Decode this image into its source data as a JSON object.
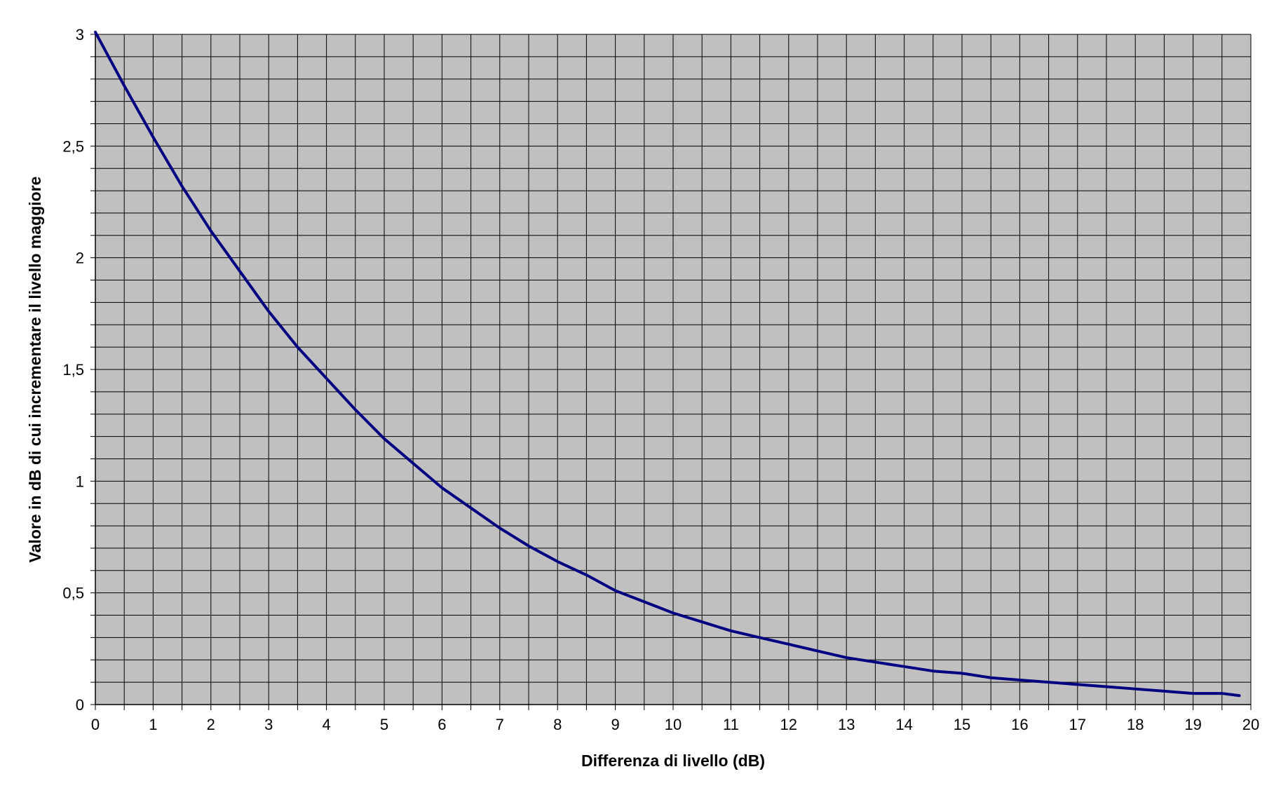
{
  "chart_data": {
    "type": "line",
    "title": "",
    "xlabel": "Differenza di livello (dB)",
    "ylabel": "Valore in dB di cui incrementare il livello maggiore",
    "xlim": [
      0,
      20
    ],
    "ylim": [
      0,
      3
    ],
    "x_ticks": [
      "0",
      "1",
      "2",
      "3",
      "4",
      "5",
      "6",
      "7",
      "8",
      "9",
      "10",
      "11",
      "12",
      "13",
      "14",
      "15",
      "16",
      "17",
      "18",
      "19",
      "20"
    ],
    "y_ticks": [
      "0",
      "0,5",
      "1",
      "1,5",
      "2",
      "2,5",
      "3"
    ],
    "grid": true,
    "legend": "none",
    "colors": {
      "plot_background": "#c0c0c0",
      "gridline": "#000000",
      "line": "#000080"
    },
    "series": [
      {
        "x": [
          0,
          0.5,
          1,
          1.5,
          2,
          2.5,
          3,
          3.5,
          4,
          4.5,
          5,
          5.5,
          6,
          6.5,
          7,
          7.5,
          8,
          8.5,
          9,
          9.5,
          10,
          10.5,
          11,
          11.5,
          12,
          12.5,
          13,
          13.5,
          14,
          14.5,
          15,
          15.5,
          16,
          16.5,
          17,
          17.5,
          18,
          18.5,
          19,
          19.5,
          19.8
        ],
        "y": [
          3.01,
          2.77,
          2.54,
          2.32,
          2.12,
          1.94,
          1.76,
          1.6,
          1.46,
          1.32,
          1.19,
          1.08,
          0.97,
          0.88,
          0.79,
          0.71,
          0.64,
          0.58,
          0.51,
          0.46,
          0.41,
          0.37,
          0.33,
          0.3,
          0.27,
          0.24,
          0.21,
          0.19,
          0.17,
          0.15,
          0.14,
          0.12,
          0.11,
          0.1,
          0.09,
          0.08,
          0.07,
          0.06,
          0.05,
          0.05,
          0.04
        ]
      }
    ]
  }
}
